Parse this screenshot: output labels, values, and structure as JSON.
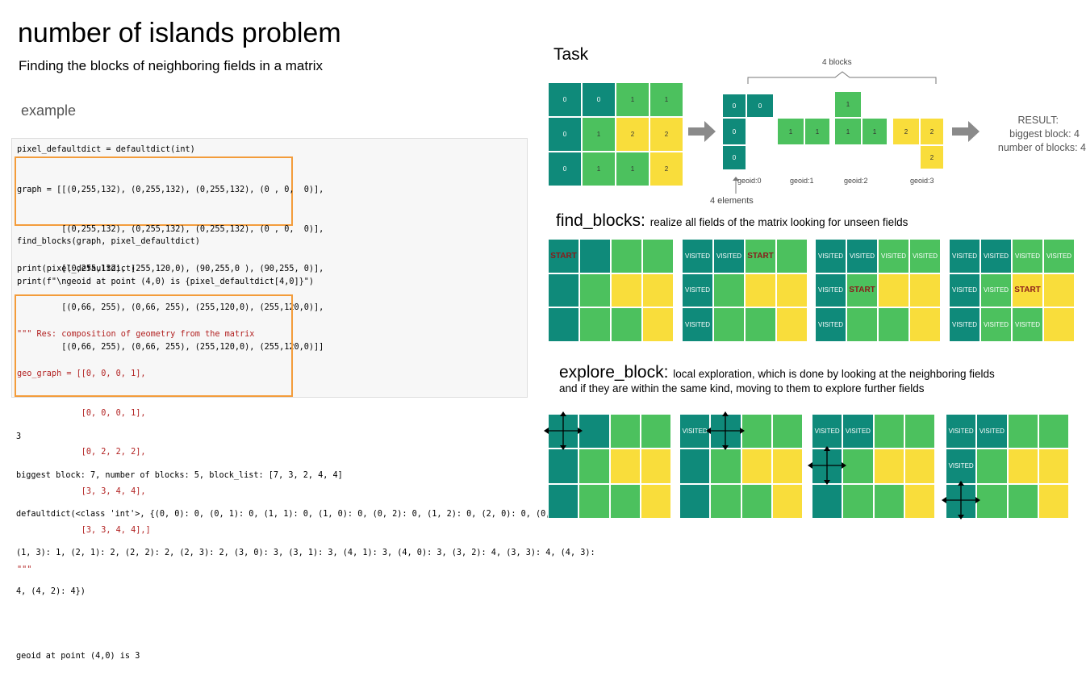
{
  "header": {
    "title": "number of islands problem",
    "subtitle": "Finding the blocks of neighboring fields in a matrix",
    "example_label": "example"
  },
  "code": {
    "line1": "pixel_defaultdict = defaultdict(int)",
    "graph_lines": [
      "graph = [[(0,255,132), (0,255,132), (0,255,132), (0 , 0,  0)],",
      "         [(0,255,132), (0,255,132), (0,255,132), (0 , 0,  0)],",
      "         [(0,255,132), (255,120,0), (90,255,0 ), (90,255, 0)],",
      "         [(0,66, 255), (0,66, 255), (255,120,0), (255,120,0)],",
      "         [(0,66, 255), (0,66, 255), (255,120,0), (255,120,0)]]"
    ],
    "call": "find_blocks(graph, pixel_defaultdict)",
    "print1": "print(pixel_defaultdict)",
    "print2": "print(f\"\\ngeoid at point (4,0) is {pixel_defaultdict[4,0]}\")",
    "res_lines": [
      "\"\"\" Res: composition of geometry from the matrix",
      "geo_graph = [[0, 0, 0, 1],",
      "             [0, 0, 0, 1],",
      "             [0, 2, 2, 2],",
      "             [3, 3, 4, 4],",
      "             [3, 3, 4, 4],]",
      "\"\"\""
    ]
  },
  "output": {
    "lines": [
      "3",
      "biggest block: 7, number of blocks: 5, block_list: [7, 3, 2, 4, 4]",
      "defaultdict(<class 'int'>, {(0, 0): 0, (0, 1): 0, (1, 1): 0, (1, 0): 0, (0, 2): 0, (1, 2): 0, (2, 0): 0, (0, 3): 1,",
      "(1, 3): 1, (2, 1): 2, (2, 2): 2, (2, 3): 2, (3, 0): 3, (3, 1): 3, (4, 1): 3, (4, 0): 3, (3, 2): 4, (3, 3): 4, (4, 3):",
      "4, (4, 2): 4})",
      "",
      "geoid at point (4,0) is 3"
    ]
  },
  "task": {
    "heading": "Task",
    "grid_values": [
      [
        "0",
        "0",
        "1",
        "1"
      ],
      [
        "0",
        "1",
        "2",
        "2"
      ],
      [
        "0",
        "1",
        "1",
        "2"
      ]
    ],
    "blocks_label": "4 blocks",
    "elements_label": "4 elements",
    "geoids": [
      "geoid:0",
      "geoid:1",
      "geoid:2",
      "geoid:3"
    ],
    "result_title": "RESULT:",
    "result_biggest": "biggest block: 4",
    "result_count": "number of blocks: 4",
    "colors": {
      "teal": "#0f8a7a",
      "green": "#4cc15e",
      "yellow": "#f9dd3b"
    }
  },
  "find_blocks": {
    "heading": "find_blocks:",
    "desc": "realize all fields of the matrix looking for unseen fields",
    "start_label": "START",
    "visited_label": "VISITED"
  },
  "explore_block": {
    "heading": "explore_block:",
    "desc1": "local exploration, which is done by looking at the neighboring fields",
    "desc2": "and if they are within the same kind, moving to them to explore further fields",
    "visited_label": "VISITED"
  }
}
